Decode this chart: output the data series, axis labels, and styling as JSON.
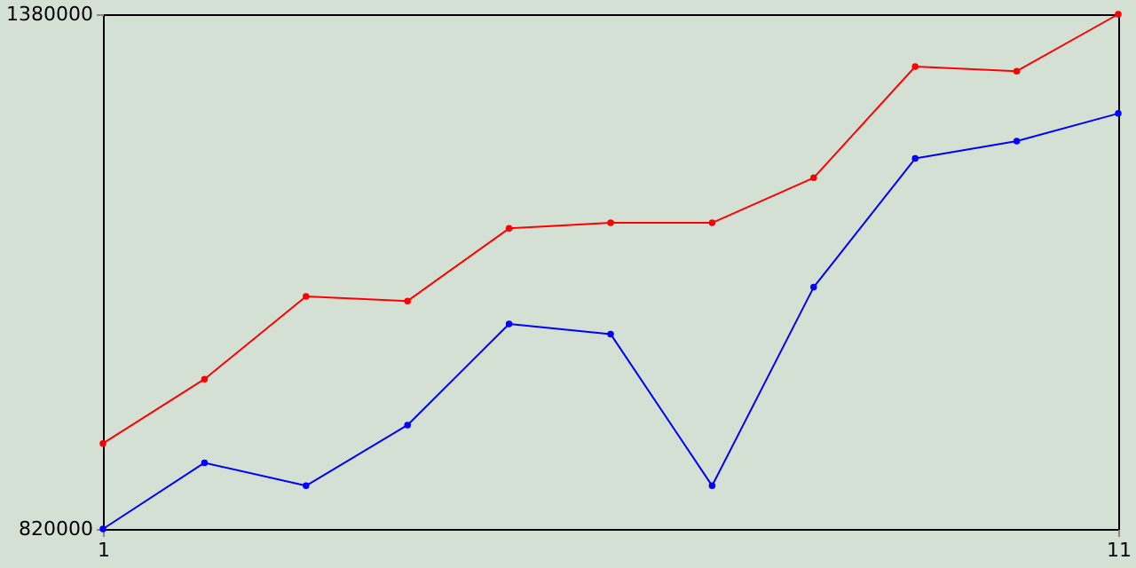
{
  "chart_data": {
    "type": "line",
    "x": [
      1,
      2,
      3,
      4,
      5,
      6,
      7,
      8,
      9,
      10,
      11
    ],
    "series": [
      {
        "color": "#ff0000",
        "values": [
          913000,
          983000,
          1073000,
          1068000,
          1147000,
          1153000,
          1153000,
          1202000,
          1323000,
          1318000,
          1380000
        ]
      },
      {
        "color": "#0000ff",
        "values": [
          820000,
          892000,
          867000,
          933000,
          1043000,
          1032000,
          867000,
          1083000,
          1223000,
          1242000,
          1272000
        ]
      }
    ],
    "xlim": [
      1,
      11
    ],
    "xticks": [
      1,
      11
    ],
    "ylim": [
      820000,
      1380000
    ],
    "yticks": [
      820000,
      1380000
    ],
    "grid": false,
    "marker": "circle",
    "line_style": "solid"
  }
}
